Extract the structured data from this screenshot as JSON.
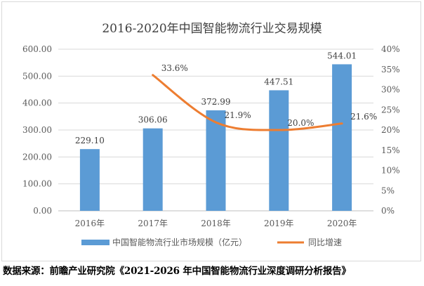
{
  "chart_data": {
    "type": "bar+line",
    "title": "2016-2020年中国智能物流行业交易规模",
    "categories": [
      "2016年",
      "2017年",
      "2018年",
      "2019年",
      "2020年"
    ],
    "series": [
      {
        "name": "中国智能物流行业市场规模（亿元）",
        "type": "bar",
        "axis": "left",
        "values": [
          229.1,
          306.06,
          372.99,
          447.51,
          544.01
        ],
        "labels": [
          "229.10",
          "306.06",
          "372.99",
          "447.51",
          "544.01"
        ],
        "color": "#5b9bd5"
      },
      {
        "name": "同比增速",
        "type": "line",
        "axis": "right",
        "values": [
          null,
          33.6,
          21.9,
          20.0,
          21.6
        ],
        "labels": [
          "",
          "33.6%",
          "21.9%",
          "20.0%",
          "21.6%"
        ],
        "color": "#ed7d31"
      }
    ],
    "y_left": {
      "min": 0,
      "max": 600,
      "step": 100,
      "tick_labels": [
        "0.00",
        "100.00",
        "200.00",
        "300.00",
        "400.00",
        "500.00",
        "600.00"
      ]
    },
    "y_right": {
      "min": 0,
      "max": 40,
      "step": 5,
      "tick_labels": [
        "0%",
        "5%",
        "10%",
        "15%",
        "20%",
        "25%",
        "30%",
        "35%",
        "40%"
      ]
    },
    "grid": true,
    "legend": "bottom"
  },
  "source_text": "数据来源：前瞻产业研究院《2021-2026 年中国智能物流行业深度调研分析报告》"
}
